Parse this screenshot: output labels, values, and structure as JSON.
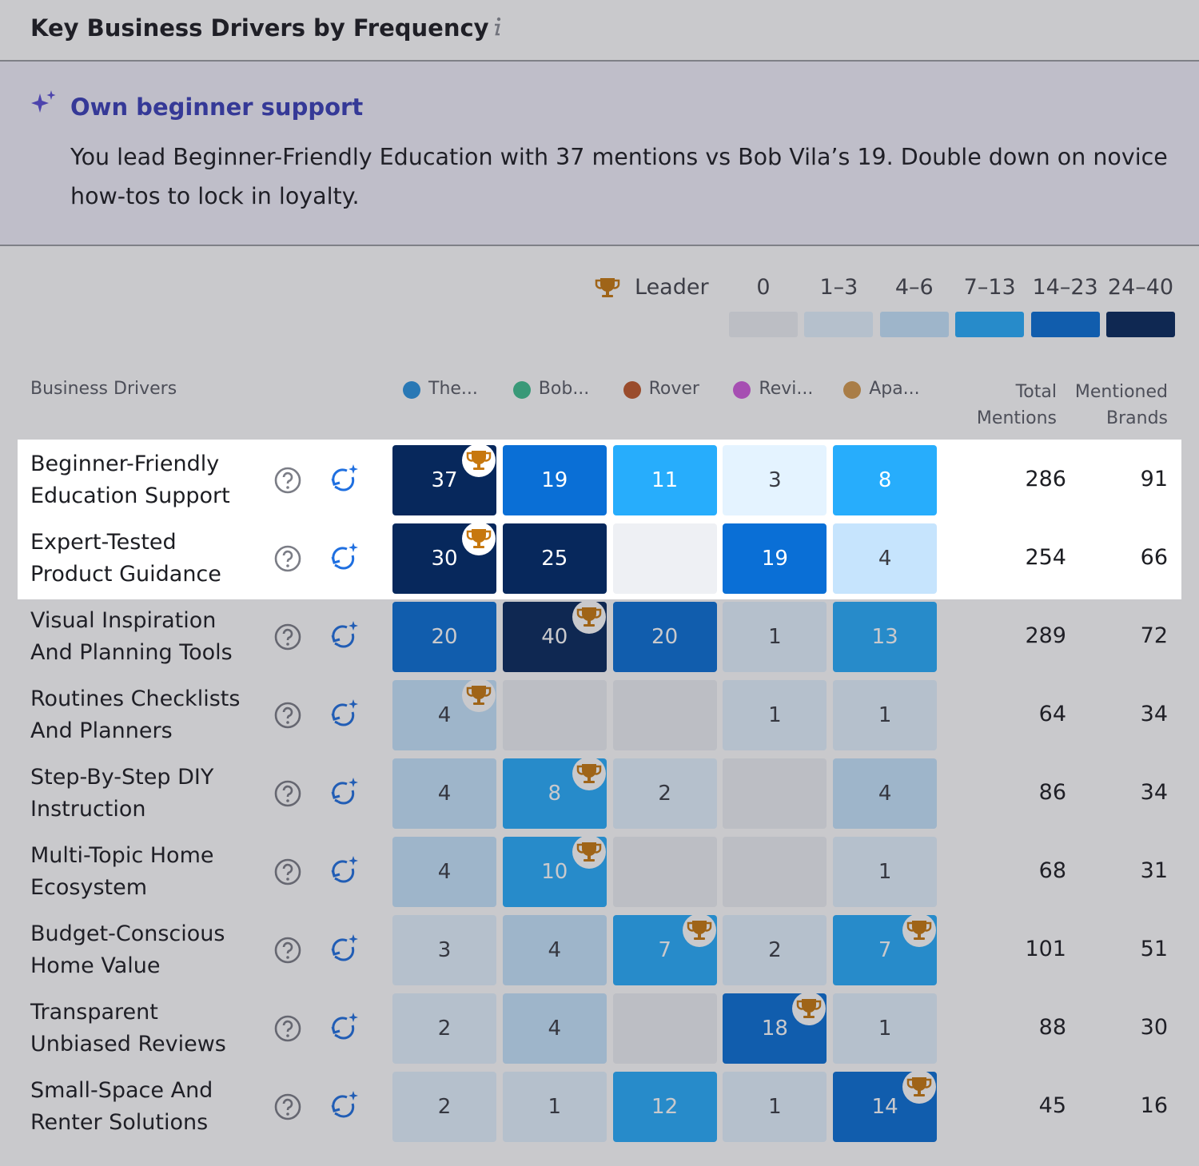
{
  "header": {
    "title": "Key Business Drivers by Frequency"
  },
  "insight": {
    "title": "Own beginner support",
    "text": "You lead Beginner-Friendly Education with 37 mentions vs Bob Vila’s 19. Double down on novice how-tos to lock in loyalty."
  },
  "legend": {
    "leader": "Leader",
    "bins": [
      {
        "label": "0",
        "min": 0,
        "max": 0,
        "color": "#eef0f4"
      },
      {
        "label": "1–3",
        "min": 1,
        "max": 3,
        "color": "#e4f3ff"
      },
      {
        "label": "4–6",
        "min": 4,
        "max": 6,
        "color": "#c6e4fd"
      },
      {
        "label": "7–13",
        "min": 7,
        "max": 13,
        "color": "#27adfc"
      },
      {
        "label": "14–23",
        "min": 14,
        "max": 23,
        "color": "#0a6fd6"
      },
      {
        "label": "24–40",
        "min": 24,
        "max": 40,
        "color": "#07285c"
      }
    ]
  },
  "table": {
    "driver_header": "Business Drivers",
    "brands": [
      {
        "name": "The...",
        "color": "#2a93e0"
      },
      {
        "name": "Bob...",
        "color": "#3fbf8f"
      },
      {
        "name": "Rover",
        "color": "#c0582a"
      },
      {
        "name": "Revi...",
        "color": "#d05ddc"
      },
      {
        "name": "Apa...",
        "color": "#d49a4e"
      }
    ],
    "total_header": "Total Mentions",
    "brands_header": "Mentioned Brands",
    "rows": [
      {
        "name": "Beginner-Friendly Education Support",
        "values": [
          37,
          19,
          11,
          3,
          8
        ],
        "leaders": [
          0
        ],
        "total": 286,
        "mentioned_brands": 91
      },
      {
        "name": "Expert-Tested Product Guidance",
        "values": [
          30,
          25,
          null,
          19,
          4
        ],
        "leaders": [
          0
        ],
        "total": 254,
        "mentioned_brands": 66
      },
      {
        "name": "Visual Inspiration And Planning Tools",
        "values": [
          20,
          40,
          20,
          1,
          13
        ],
        "leaders": [
          1
        ],
        "total": 289,
        "mentioned_brands": 72
      },
      {
        "name": "Routines Checklists And Planners",
        "values": [
          4,
          null,
          null,
          1,
          1
        ],
        "leaders": [
          0
        ],
        "total": 64,
        "mentioned_brands": 34
      },
      {
        "name": "Step-By-Step DIY Instruction",
        "values": [
          4,
          8,
          2,
          null,
          4
        ],
        "leaders": [
          1
        ],
        "total": 86,
        "mentioned_brands": 34
      },
      {
        "name": "Multi-Topic Home Ecosystem",
        "values": [
          4,
          10,
          null,
          null,
          1
        ],
        "leaders": [
          1
        ],
        "total": 68,
        "mentioned_brands": 31
      },
      {
        "name": "Budget-Conscious Home Value",
        "values": [
          3,
          4,
          7,
          2,
          7
        ],
        "leaders": [
          2,
          4
        ],
        "total": 101,
        "mentioned_brands": 51
      },
      {
        "name": "Transparent Unbiased Reviews",
        "values": [
          2,
          4,
          null,
          18,
          1
        ],
        "leaders": [
          3
        ],
        "total": 88,
        "mentioned_brands": 30
      },
      {
        "name": "Small-Space And Renter Solutions",
        "values": [
          2,
          1,
          12,
          1,
          14
        ],
        "leaders": [
          4
        ],
        "total": 45,
        "mentioned_brands": 16
      }
    ]
  }
}
